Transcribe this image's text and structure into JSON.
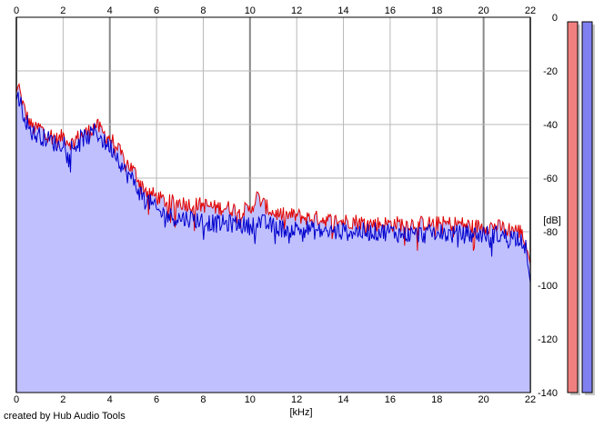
{
  "chart_data": {
    "type": "area",
    "xlabel": "[kHz]",
    "ylabel": "[dB]",
    "xlim": [
      0,
      22
    ],
    "ylim": [
      -140,
      0
    ],
    "x_ticks": [
      0,
      2,
      4,
      6,
      8,
      10,
      12,
      14,
      16,
      18,
      20,
      22
    ],
    "y_ticks": [
      0,
      -20,
      -40,
      -60,
      -80,
      -100,
      -120,
      -140
    ],
    "x_tick_labels": [
      "0",
      "2",
      "4",
      "6",
      "8",
      "10",
      "12",
      "14",
      "16",
      "18",
      "20",
      "22"
    ],
    "y_tick_labels": [
      "0",
      "-20",
      "-40",
      "-60",
      "-80",
      "-100",
      "-120",
      "-140"
    ],
    "grid": true,
    "x_major_grid": [
      0,
      4,
      10,
      20,
      22
    ],
    "series": [
      {
        "color": "#e00000",
        "x": [
          0,
          0.1,
          0.2,
          0.4,
          0.6,
          0.8,
          1.0,
          1.2,
          1.5,
          1.8,
          2.0,
          2.2,
          2.4,
          2.6,
          2.8,
          3.0,
          3.2,
          3.4,
          3.6,
          3.8,
          4.0,
          4.2,
          4.4,
          4.6,
          4.8,
          5.0,
          5.2,
          5.4,
          5.6,
          5.8,
          6.0,
          6.2,
          6.5,
          7.0,
          7.5,
          8.0,
          8.5,
          9.0,
          9.5,
          10.0,
          10.3,
          10.6,
          11.0,
          11.5,
          12.0,
          12.5,
          13.0,
          13.5,
          14.0,
          14.5,
          15.0,
          15.5,
          16.0,
          16.5,
          17.0,
          17.5,
          18.0,
          18.5,
          19.0,
          19.5,
          20.0,
          20.5,
          21.0,
          21.3,
          21.6,
          21.8,
          22.0
        ],
        "values": [
          -28,
          -25,
          -30,
          -36,
          -40,
          -42,
          -41,
          -43,
          -44,
          -46,
          -44,
          -46,
          -47,
          -45,
          -44,
          -43,
          -42,
          -40,
          -42,
          -44,
          -45,
          -47,
          -50,
          -53,
          -55,
          -57,
          -60,
          -63,
          -65,
          -66,
          -67,
          -68,
          -69,
          -69,
          -70,
          -70,
          -71,
          -71,
          -72,
          -72,
          -67,
          -70,
          -73,
          -74,
          -74,
          -75,
          -75,
          -76,
          -76,
          -76,
          -77,
          -77,
          -77,
          -77,
          -77,
          -77,
          -77,
          -77,
          -77,
          -78,
          -78,
          -78,
          -79,
          -79,
          -80,
          -84,
          -92
        ]
      },
      {
        "color": "#0000cc",
        "x": [
          0,
          0.1,
          0.2,
          0.4,
          0.6,
          0.8,
          1.0,
          1.2,
          1.5,
          1.8,
          2.0,
          2.2,
          2.4,
          2.6,
          2.8,
          3.0,
          3.2,
          3.4,
          3.6,
          3.8,
          4.0,
          4.2,
          4.4,
          4.6,
          4.8,
          5.0,
          5.2,
          5.4,
          5.6,
          5.8,
          6.0,
          6.2,
          6.5,
          7.0,
          7.5,
          8.0,
          8.5,
          9.0,
          9.5,
          10.0,
          10.3,
          10.6,
          11.0,
          11.5,
          12.0,
          12.5,
          13.0,
          13.5,
          14.0,
          14.5,
          15.0,
          15.5,
          16.0,
          16.5,
          17.0,
          17.5,
          18.0,
          18.5,
          19.0,
          19.5,
          20.0,
          20.5,
          21.0,
          21.3,
          21.6,
          21.8,
          22.0
        ],
        "values": [
          -31,
          -27,
          -33,
          -38,
          -42,
          -44,
          -44,
          -45,
          -46,
          -48,
          -46,
          -47,
          -49,
          -47,
          -45,
          -45,
          -44,
          -42,
          -45,
          -47,
          -48,
          -50,
          -53,
          -57,
          -59,
          -61,
          -64,
          -67,
          -68,
          -70,
          -72,
          -73,
          -74,
          -75,
          -75,
          -76,
          -77,
          -77,
          -77,
          -78,
          -76,
          -77,
          -78,
          -79,
          -79,
          -79,
          -80,
          -80,
          -80,
          -80,
          -80,
          -80,
          -80,
          -81,
          -81,
          -81,
          -80,
          -81,
          -81,
          -81,
          -81,
          -81,
          -82,
          -82,
          -82,
          -86,
          -99
        ]
      }
    ]
  },
  "meters": [
    {
      "color": "#f08080",
      "level": 1.0
    },
    {
      "color": "#8080f0",
      "level": 1.0
    }
  ],
  "colors": {
    "area_fill": "#c0c0ff",
    "grid_minor": "#b8b8b8",
    "grid_major": "#888888",
    "frame": "#000000"
  },
  "credit": "created by Hub Audio Tools"
}
